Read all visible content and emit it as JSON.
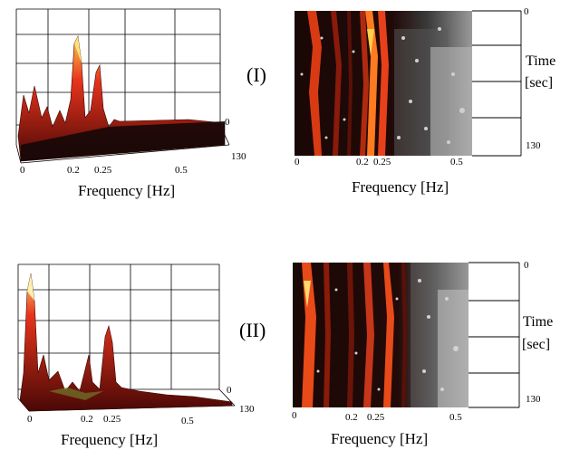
{
  "panels": [
    {
      "id": "I",
      "label": "(I)",
      "surface": {
        "x_ticks": [
          "0",
          "0.2",
          "0.25",
          "0.5"
        ],
        "depth_ticks": [
          "0",
          "130"
        ],
        "x_title": "Frequency [Hz]"
      },
      "spectrogram": {
        "x_ticks": [
          "0",
          "0.2",
          "0.25",
          "0.5"
        ],
        "y_ticks": [
          "0",
          "130"
        ],
        "x_title": "Frequency [Hz]",
        "y_title_line1": "Time",
        "y_title_line2": "[sec]"
      }
    },
    {
      "id": "II",
      "label": "(II)",
      "surface": {
        "x_ticks": [
          "0",
          "0.2",
          "0.25",
          "0.5"
        ],
        "depth_ticks": [
          "0",
          "130"
        ],
        "x_title": "Frequency [Hz]"
      },
      "spectrogram": {
        "x_ticks": [
          "0",
          "0.2",
          "0.25",
          "0.5"
        ],
        "y_ticks": [
          "0",
          "130"
        ],
        "x_title": "Frequency [Hz]",
        "y_title_line1": "Time",
        "y_title_line2": "[sec]"
      }
    }
  ],
  "colors": {
    "peak_hot": "#ffd24a",
    "peak_mid": "#e8341c",
    "peak_dark": "#5a0a06",
    "floor": "#1a0c0a",
    "spectro_bg": "#150807",
    "noise": "#c9c9c9"
  }
}
